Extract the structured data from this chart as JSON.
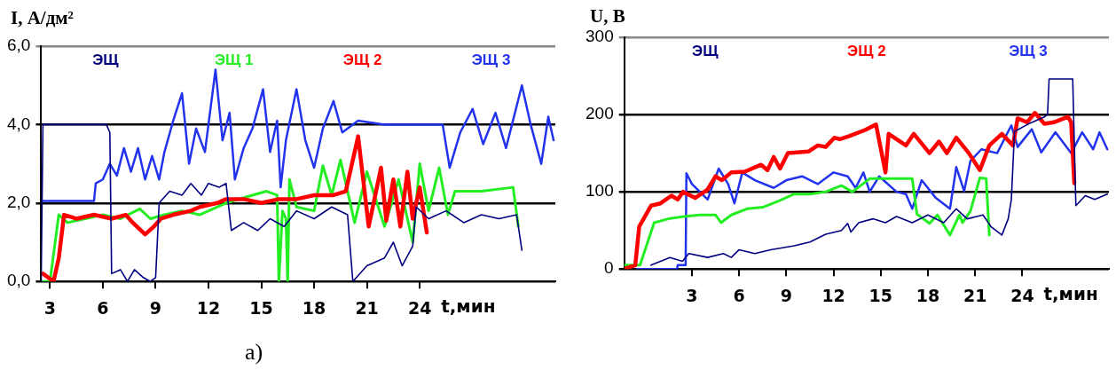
{
  "chart_data": [
    {
      "type": "line",
      "ylabel": "I, А/дм²",
      "xlabel": "t,мин",
      "xlim": [
        2.5,
        31.7
      ],
      "xticks": [
        3,
        6,
        9,
        12,
        15,
        18,
        21,
        24
      ],
      "ylim": [
        0,
        6
      ],
      "yticks": [
        {
          "value": 0,
          "label": "0,0"
        },
        {
          "value": 2,
          "label": "2,0"
        },
        {
          "value": 4,
          "label": "4,0"
        },
        {
          "value": 6,
          "label": "6,0"
        }
      ],
      "grid": "y",
      "marker": "none",
      "line_style": "solid",
      "annotations": [
        "а)"
      ],
      "series": [
        {
          "name": "ЭЩ",
          "color": "#000080",
          "x": [
            2.5,
            2.6,
            6.2,
            6.4,
            6.5,
            7.0,
            7.4,
            7.8,
            8.3,
            8.7,
            9.0,
            9.2,
            9.8,
            10.5,
            11.0,
            11.6,
            12.0,
            12.6,
            13.0,
            13.3,
            14.0,
            14.8,
            15.5,
            16.3,
            17.0,
            18.0,
            19.0,
            19.9,
            20.2,
            21.0,
            22.0,
            22.5,
            23.0,
            23.6,
            23.8,
            24.5,
            25.5,
            26.5,
            27.5,
            28.5,
            29.5,
            29.8
          ],
          "values": [
            0.0,
            4.0,
            4.0,
            3.8,
            0.2,
            0.3,
            0.0,
            0.3,
            0.1,
            0.0,
            0.1,
            2.0,
            2.3,
            2.2,
            2.5,
            2.2,
            2.5,
            2.4,
            2.5,
            1.3,
            1.5,
            1.3,
            1.6,
            1.4,
            1.8,
            1.6,
            1.9,
            1.7,
            0.0,
            0.4,
            0.6,
            1.0,
            0.4,
            0.9,
            1.9,
            1.6,
            1.8,
            1.5,
            1.7,
            1.6,
            1.7,
            0.8
          ]
        },
        {
          "name": "ЭЩ 1",
          "color": "#22ee22",
          "x": [
            2.6,
            3.0,
            3.5,
            4.0,
            5.0,
            6.0,
            7.0,
            8.1,
            8.7,
            9.5,
            10.5,
            11.5,
            13.0,
            14.5,
            15.3,
            15.9,
            16.0,
            16.2,
            16.4,
            16.5,
            16.6,
            17.0,
            18.0,
            18.5,
            19.0,
            19.5,
            20.3,
            21.0,
            22.0,
            22.8,
            23.6,
            24.0,
            24.5,
            25.1,
            25.6,
            26.0,
            27.5,
            29.3,
            29.6
          ],
          "values": [
            0.0,
            0.0,
            1.7,
            1.5,
            1.6,
            1.7,
            1.6,
            1.85,
            1.6,
            1.7,
            1.8,
            1.7,
            2.0,
            2.2,
            2.3,
            2.2,
            0.0,
            1.8,
            1.6,
            0.0,
            2.6,
            1.9,
            1.8,
            2.95,
            2.2,
            3.1,
            1.5,
            2.8,
            1.4,
            2.6,
            1.0,
            3.0,
            1.8,
            2.9,
            1.7,
            2.3,
            2.3,
            2.4,
            1.4
          ]
        },
        {
          "name": "ЭЩ 2",
          "color": "#ff0000",
          "x": [
            2.6,
            3.2,
            3.5,
            3.8,
            4.5,
            5.5,
            6.5,
            7.3,
            7.7,
            8.4,
            8.9,
            9.3,
            10.0,
            11.0,
            11.5,
            12.5,
            13.0,
            14.0,
            15.0,
            16.0,
            17.0,
            18.0,
            19.1,
            19.8,
            20.5,
            21.1,
            21.8,
            22.1,
            22.5,
            22.9,
            23.3,
            23.6,
            24.0,
            24.4
          ],
          "values": [
            0.2,
            0.0,
            0.6,
            1.7,
            1.6,
            1.7,
            1.6,
            1.7,
            1.5,
            1.2,
            1.4,
            1.6,
            1.7,
            1.8,
            1.9,
            2.0,
            2.1,
            2.1,
            2.0,
            2.1,
            2.1,
            2.2,
            2.2,
            2.3,
            3.7,
            1.4,
            2.9,
            1.55,
            2.6,
            1.4,
            2.8,
            1.6,
            2.4,
            1.25
          ]
        },
        {
          "name": "ЭЩ 3",
          "color": "#2233ee",
          "x": [
            2.6,
            5.5,
            5.6,
            6.0,
            6.4,
            6.8,
            7.2,
            7.6,
            8.0,
            8.4,
            8.8,
            9.2,
            9.5,
            10.0,
            10.5,
            10.9,
            11.3,
            11.8,
            12.4,
            12.8,
            13.2,
            13.5,
            14.0,
            14.5,
            15.1,
            15.5,
            15.9,
            16.1,
            16.4,
            17.0,
            17.5,
            18.0,
            18.5,
            19.1,
            19.6,
            20.5,
            22.0,
            24.0,
            25.3,
            25.7,
            26.3,
            27.0,
            27.6,
            28.3,
            28.9,
            29.8,
            30.3,
            30.9,
            31.3,
            31.6
          ],
          "values": [
            2.05,
            2.05,
            2.5,
            2.6,
            3.0,
            2.7,
            3.4,
            2.8,
            3.4,
            2.6,
            3.2,
            2.6,
            3.3,
            4.1,
            4.8,
            3.0,
            3.9,
            3.3,
            5.4,
            3.6,
            4.3,
            2.6,
            3.4,
            3.9,
            4.9,
            3.3,
            4.1,
            2.4,
            3.6,
            4.9,
            3.6,
            2.9,
            3.9,
            4.6,
            3.8,
            4.1,
            4.0,
            4.0,
            4.0,
            2.9,
            3.8,
            4.4,
            3.5,
            4.3,
            3.4,
            5.0,
            4.0,
            3.0,
            4.2,
            3.6
          ]
        }
      ]
    },
    {
      "type": "line",
      "ylabel": "U, В",
      "xlabel": "t,мин",
      "xlim": [
        -1.3,
        29.5
      ],
      "xticks": [
        3,
        6,
        9,
        12,
        15,
        18,
        21,
        24
      ],
      "ylim": [
        0,
        300
      ],
      "yticks": [
        0,
        100,
        200,
        300
      ],
      "grid": "y",
      "marker": "none",
      "line_style": "solid",
      "series": [
        {
          "name": "ЭЩ",
          "color": "#000080",
          "x": [
            0.4,
            1.0,
            1.6,
            2.4,
            2.8,
            4.0,
            5.0,
            5.5,
            6.0,
            7.0,
            8.0,
            9.5,
            10.5,
            11.5,
            12.5,
            12.9,
            13.1,
            13.6,
            14.5,
            15.3,
            16.0,
            17.0,
            18.0,
            19.0,
            19.8,
            20.5,
            21.5,
            22.0,
            22.7,
            23.1,
            23.3,
            23.5,
            24.5,
            25.4,
            25.6,
            25.7,
            27.2,
            27.4,
            28.0,
            28.6,
            29.4
          ],
          "values": [
            5,
            10,
            15,
            10,
            20,
            15,
            20,
            15,
            25,
            20,
            25,
            30,
            35,
            45,
            50,
            59,
            48,
            60,
            65,
            60,
            68,
            60,
            70,
            60,
            78,
            65,
            70,
            55,
            44,
            65,
            90,
            178,
            189,
            197,
            200,
            246,
            246,
            82,
            95,
            90,
            97
          ]
        },
        {
          "color": "#22ee22",
          "x": [
            -1.3,
            -0.3,
            0.6,
            1.5,
            2.5,
            3.5,
            4.5,
            4.85,
            5.5,
            6.5,
            7.5,
            8.5,
            9.5,
            10.5,
            11.5,
            12.5,
            13.2,
            14.3,
            17.0,
            17.3,
            18.1,
            18.6,
            19.4,
            20.0,
            20.2,
            20.7,
            21.3,
            21.7,
            21.9
          ],
          "values": [
            5,
            5,
            60,
            65,
            68,
            70,
            70,
            60,
            70,
            78,
            80,
            88,
            97,
            97,
            100,
            108,
            100,
            117,
            117,
            71,
            59,
            70,
            44,
            70,
            60,
            75,
            118,
            117,
            44
          ]
        },
        {
          "name": "ЭЩ 2",
          "color": "#ff0000",
          "x": [
            -1.3,
            -0.6,
            -0.35,
            0.4,
            1.0,
            1.7,
            2.1,
            2.44,
            3.2,
            4.0,
            4.5,
            4.9,
            5.5,
            6.35,
            7.4,
            7.8,
            8.2,
            8.6,
            9.1,
            10.4,
            11.0,
            11.5,
            12.05,
            12.4,
            13.0,
            14.0,
            14.7,
            15.3,
            15.5,
            16.6,
            17.1,
            18.1,
            18.7,
            19.2,
            19.8,
            20.6,
            21.3,
            21.9,
            22.7,
            23.4,
            23.7,
            24.3,
            24.8,
            25.4,
            26.0,
            26.9,
            27.1,
            27.3
          ],
          "values": [
            0,
            5,
            55,
            82,
            85,
            95,
            90,
            100,
            92,
            103,
            120,
            115,
            125,
            126,
            135,
            128,
            145,
            130,
            150,
            152,
            160,
            158,
            170,
            168,
            172,
            180,
            187,
            125,
            175,
            160,
            175,
            150,
            165,
            150,
            170,
            150,
            128,
            160,
            175,
            160,
            195,
            190,
            202,
            188,
            190,
            197,
            190,
            111
          ]
        },
        {
          "name": "ЭЩ 3",
          "color": "#2233ee",
          "x": [
            -0.5,
            2.05,
            2.1,
            2.6,
            2.65,
            3.0,
            4.0,
            4.7,
            5.3,
            5.7,
            6.2,
            7.0,
            8.2,
            9.0,
            10.0,
            11.0,
            12.0,
            12.9,
            13.4,
            13.9,
            14.3,
            14.9,
            16.0,
            16.6,
            17.0,
            17.6,
            18.5,
            19.4,
            19.8,
            20.3,
            20.7,
            21.4,
            22.4,
            23.3,
            23.7,
            24.6,
            25.2,
            26.1,
            27.1,
            27.8,
            28.5,
            28.9,
            29.4
          ],
          "values": [
            0,
            0,
            5,
            5,
            124,
            110,
            90,
            130,
            110,
            85,
            125,
            115,
            105,
            115,
            120,
            110,
            125,
            120,
            105,
            125,
            100,
            120,
            100,
            97,
            78,
            115,
            92,
            78,
            132,
            101,
            140,
            155,
            150,
            186,
            158,
            181,
            151,
            177,
            150,
            177,
            155,
            177,
            155
          ]
        }
      ]
    }
  ]
}
